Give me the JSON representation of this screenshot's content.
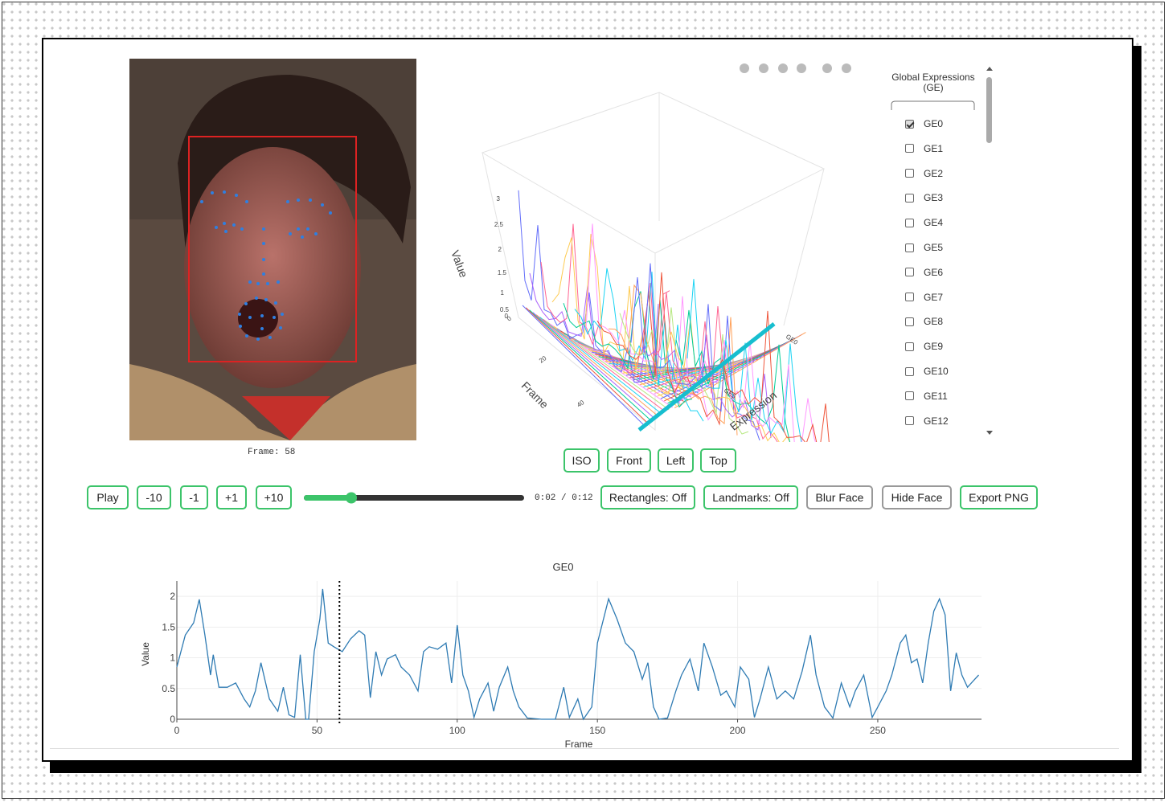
{
  "video": {
    "frame_label": "Frame: 58"
  },
  "plot3d": {
    "axis_titles": {
      "value": "Value",
      "frame": "Frame",
      "expression": "Expression"
    },
    "value_ticks": [
      "0",
      "0.5",
      "1",
      "1.5",
      "2",
      "2.5",
      "3"
    ],
    "frame_ticks": [
      "0",
      "20",
      "40"
    ],
    "expression_ticks": [
      "GE0",
      "GE5"
    ]
  },
  "legend": {
    "title": "Global Expressions (GE)",
    "items": [
      {
        "label": "GE0",
        "checked": true
      },
      {
        "label": "GE1",
        "checked": false
      },
      {
        "label": "GE2",
        "checked": false
      },
      {
        "label": "GE3",
        "checked": false
      },
      {
        "label": "GE4",
        "checked": false
      },
      {
        "label": "GE5",
        "checked": false
      },
      {
        "label": "GE6",
        "checked": false
      },
      {
        "label": "GE7",
        "checked": false
      },
      {
        "label": "GE8",
        "checked": false
      },
      {
        "label": "GE9",
        "checked": false
      },
      {
        "label": "GE10",
        "checked": false
      },
      {
        "label": "GE11",
        "checked": false
      },
      {
        "label": "GE12",
        "checked": false
      }
    ]
  },
  "view_buttons": [
    "ISO",
    "Front",
    "Left",
    "Top"
  ],
  "controls": {
    "step_buttons": [
      "Play",
      "-10",
      "-1",
      "+1",
      "+10"
    ],
    "time": "0:02 / 0:12",
    "toggles": [
      "Rectangles: Off",
      "Landmarks: Off",
      "Blur Face",
      "Hide Face",
      "Export PNG"
    ]
  },
  "chart_data": {
    "type": "line",
    "title": "GE0",
    "x_label": "Frame",
    "y_label": "Value",
    "xlim": [
      0,
      287
    ],
    "ylim": [
      0,
      2.25
    ],
    "xticks": [
      0,
      50,
      100,
      150,
      200,
      250
    ],
    "yticks": [
      0,
      0.5,
      1,
      1.5,
      2
    ],
    "grid": true,
    "marker_x": 58,
    "series": [
      {
        "name": "GE0",
        "color": "#2f7bb3",
        "x": [
          0,
          3,
          6,
          8,
          10,
          12,
          13,
          15,
          18,
          21,
          24,
          26,
          28,
          30,
          33,
          36,
          38,
          40,
          42,
          44,
          46,
          47,
          49,
          51,
          52,
          54,
          56,
          59,
          62,
          65,
          67,
          69,
          71,
          73,
          75,
          78,
          80,
          83,
          86,
          88,
          90,
          93,
          96,
          98,
          100,
          102,
          104,
          106,
          108,
          111,
          113,
          115,
          118,
          120,
          122,
          125,
          130,
          135,
          138,
          140,
          143,
          145,
          148,
          150,
          154,
          157,
          160,
          163,
          166,
          168,
          170,
          172,
          175,
          178,
          180,
          183,
          186,
          188,
          191,
          194,
          196,
          199,
          201,
          204,
          206,
          208,
          211,
          214,
          217,
          220,
          223,
          226,
          228,
          231,
          234,
          237,
          240,
          242,
          245,
          248,
          250,
          253,
          255,
          258,
          260,
          262,
          264,
          266,
          268,
          270,
          272,
          274,
          276,
          278,
          280,
          282,
          284,
          286
        ],
        "values": [
          0.85,
          1.37,
          1.57,
          1.95,
          1.37,
          0.72,
          1.05,
          0.52,
          0.52,
          0.59,
          0.33,
          0.2,
          0.46,
          0.92,
          0.33,
          0.13,
          0.52,
          0.07,
          0.03,
          1.05,
          0,
          0,
          1.1,
          1.63,
          2.12,
          1.24,
          1.18,
          1.1,
          1.31,
          1.44,
          1.37,
          0.35,
          1.1,
          0.72,
          0.98,
          1.05,
          0.85,
          0.72,
          0.46,
          1.1,
          1.18,
          1.14,
          1.24,
          0.59,
          1.53,
          0.72,
          0.46,
          0.03,
          0.33,
          0.59,
          0.13,
          0.52,
          0.85,
          0.46,
          0.2,
          0.02,
          0,
          0,
          0.52,
          0.03,
          0.33,
          0,
          0.2,
          1.24,
          1.96,
          1.63,
          1.24,
          1.1,
          0.65,
          0.92,
          0.2,
          0,
          0.02,
          0.46,
          0.72,
          0.98,
          0.46,
          1.24,
          0.85,
          0.39,
          0.46,
          0.2,
          0.85,
          0.65,
          0.03,
          0.33,
          0.85,
          0.33,
          0.46,
          0.33,
          0.78,
          1.37,
          0.72,
          0.2,
          0.02,
          0.59,
          0.2,
          0.46,
          0.72,
          0.03,
          0.2,
          0.46,
          0.72,
          1.24,
          1.37,
          0.92,
          0.98,
          0.59,
          1.24,
          1.76,
          1.96,
          1.7,
          0.46,
          1.08,
          0.72,
          0.52,
          0.62,
          0.72
        ]
      }
    ]
  }
}
